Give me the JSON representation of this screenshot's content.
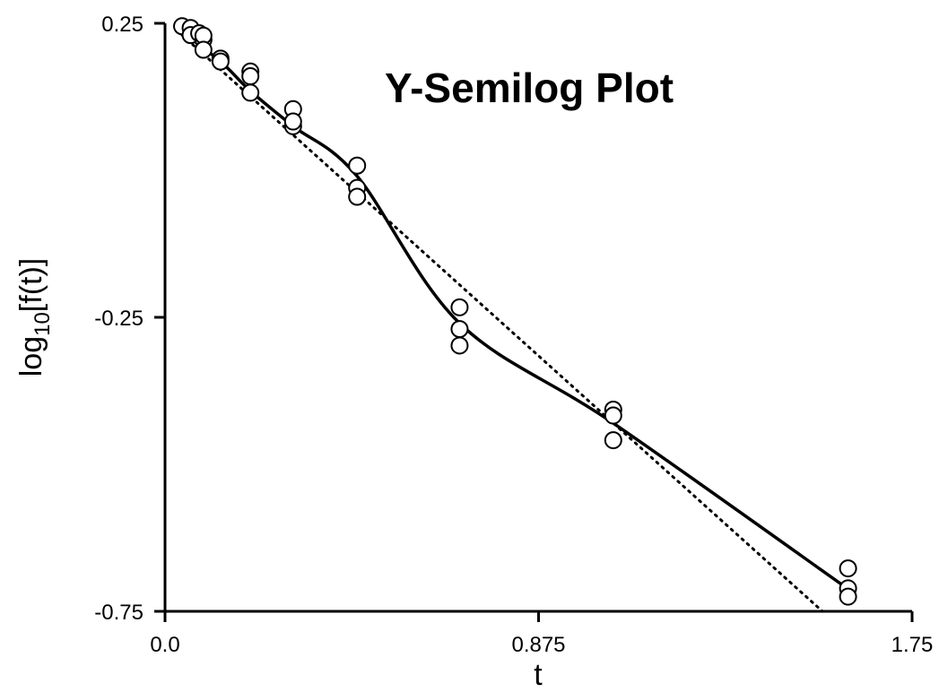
{
  "chart_data": {
    "type": "scatter",
    "title": "Y-Semilog Plot",
    "xlabel": "t",
    "ylabel_main": "log",
    "ylabel_sub": "10",
    "ylabel_rest": "[f(t)]",
    "xlim": [
      0,
      1.75
    ],
    "ylim": [
      -0.75,
      0.25
    ],
    "x_ticks": [
      0.0,
      0.875,
      1.75
    ],
    "x_tick_labels": [
      "0.0",
      "0.875",
      "1.75"
    ],
    "y_ticks": [
      -0.75,
      -0.25,
      0.25
    ],
    "y_tick_labels": [
      "-0.75",
      "-0.25",
      "0.25"
    ],
    "grid": false,
    "series": [
      {
        "kind": "markers",
        "marker": "open-circle",
        "points": [
          [
            0.04,
            0.245
          ],
          [
            0.06,
            0.242
          ],
          [
            0.06,
            0.23
          ],
          [
            0.08,
            0.233
          ],
          [
            0.09,
            0.222
          ],
          [
            0.09,
            0.229
          ],
          [
            0.09,
            0.205
          ],
          [
            0.13,
            0.19
          ],
          [
            0.13,
            0.185
          ],
          [
            0.2,
            0.168
          ],
          [
            0.2,
            0.132
          ],
          [
            0.2,
            0.16
          ],
          [
            0.3,
            0.104
          ],
          [
            0.3,
            0.075
          ],
          [
            0.3,
            0.083
          ],
          [
            0.45,
            0.008
          ],
          [
            0.45,
            -0.03
          ],
          [
            0.45,
            -0.045
          ],
          [
            0.69,
            -0.233
          ],
          [
            0.69,
            -0.27
          ],
          [
            0.69,
            -0.298
          ],
          [
            1.05,
            -0.407
          ],
          [
            1.05,
            -0.417
          ],
          [
            1.05,
            -0.459
          ],
          [
            1.6,
            -0.677
          ],
          [
            1.6,
            -0.711
          ],
          [
            1.6,
            -0.725
          ]
        ]
      },
      {
        "kind": "fitted-curve",
        "style": "solid",
        "points": [
          [
            0.04,
            0.235
          ],
          [
            0.13,
            0.185
          ],
          [
            0.2,
            0.135
          ],
          [
            0.3,
            0.075
          ],
          [
            0.45,
            -0.01
          ],
          [
            0.69,
            -0.26
          ],
          [
            1.05,
            -0.43
          ],
          [
            1.6,
            -0.712
          ]
        ]
      },
      {
        "kind": "linear-fit",
        "style": "dotted",
        "points": [
          [
            0.04,
            0.23
          ],
          [
            1.54,
            -0.75
          ]
        ]
      }
    ]
  }
}
